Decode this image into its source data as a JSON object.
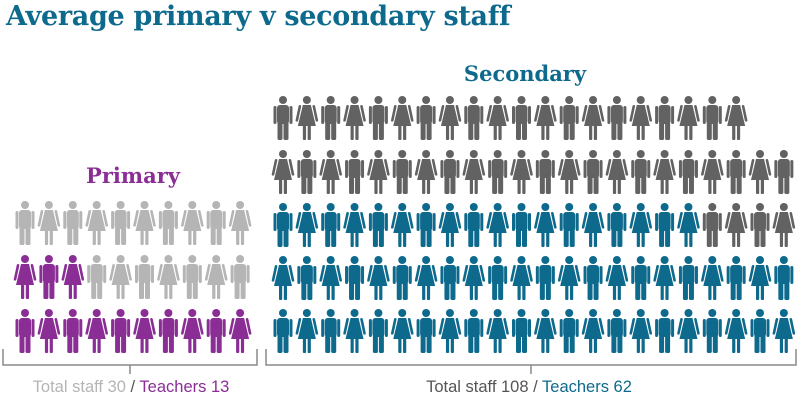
{
  "title": "Average primary v secondary staff",
  "colors": {
    "title": "#0e6a8c",
    "primary_teacher": "#8a2e96",
    "primary_other": "#b5b5b5",
    "secondary_teacher": "#0e6a8c",
    "secondary_other": "#626262",
    "caption_separator": "#555555",
    "bracket": "#8a8a8a"
  },
  "chart_data": {
    "type": "pictogram",
    "unit": "one figure = one staff member",
    "groups": [
      {
        "name": "Primary",
        "total_staff": 30,
        "teachers": 13,
        "caption_total": "Total staff 30",
        "caption_separator": "/",
        "caption_teachers": "Teachers 13",
        "label_color": "#8a2e96",
        "total_color": "#b5b5b5",
        "teacher_color": "#8a2e96",
        "other_color": "#b5b5b5"
      },
      {
        "name": "Secondary",
        "total_staff": 108,
        "teachers": 62,
        "caption_total": "Total staff 108",
        "caption_separator": "/",
        "caption_teachers": "Teachers 62",
        "label_color": "#0e6a8c",
        "total_color": "#626262",
        "teacher_color": "#0e6a8c",
        "other_color": "#626262"
      }
    ]
  }
}
